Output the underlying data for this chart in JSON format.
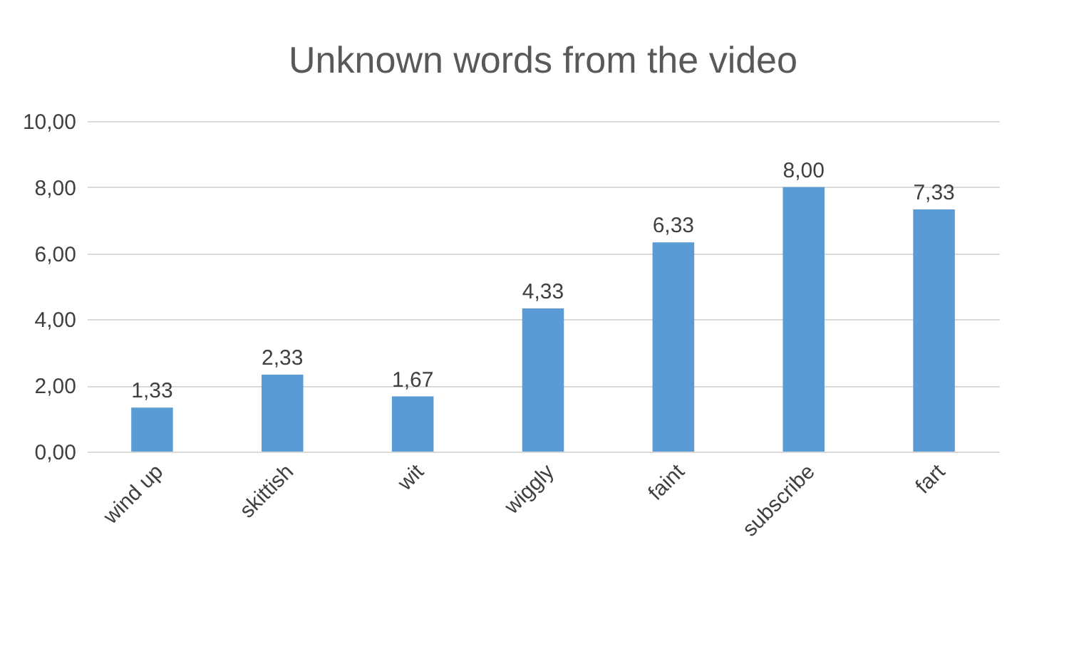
{
  "chart_data": {
    "type": "bar",
    "title": "Unknown words from the video",
    "categories": [
      "wind up",
      "skittish",
      "wit",
      "wiggly",
      "faint",
      "subscribe",
      "fart"
    ],
    "values": [
      1.33,
      2.33,
      1.67,
      4.33,
      6.33,
      8.0,
      7.33
    ],
    "value_labels": [
      "1,33",
      "2,33",
      "1,67",
      "4,33",
      "6,33",
      "8,00",
      "7,33"
    ],
    "color": "#5b9bd5",
    "ylim": [
      0,
      10
    ],
    "yticks": [
      {
        "value": 0,
        "label": "0,00"
      },
      {
        "value": 2,
        "label": "2,00"
      },
      {
        "value": 4,
        "label": "4,00"
      },
      {
        "value": 6,
        "label": "6,00"
      },
      {
        "value": 8,
        "label": "8,00"
      },
      {
        "value": 10,
        "label": "10,00"
      }
    ],
    "grid": "y"
  }
}
